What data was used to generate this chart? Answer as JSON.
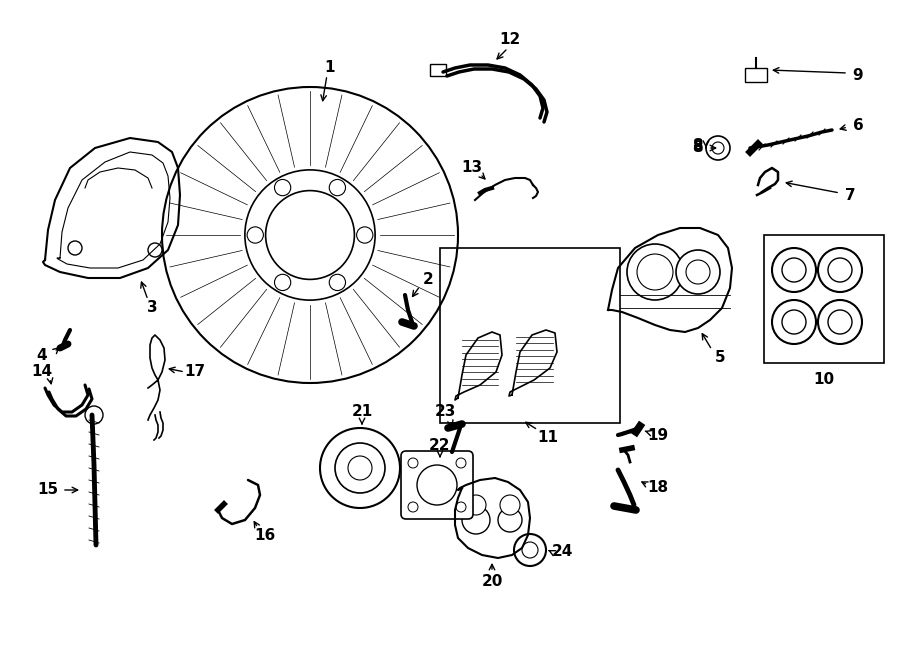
{
  "bg_color": "#ffffff",
  "line_color": "#000000",
  "fig_width": 9.0,
  "fig_height": 6.61,
  "dpi": 100,
  "lw": 1.2,
  "label_fontsize": 11
}
